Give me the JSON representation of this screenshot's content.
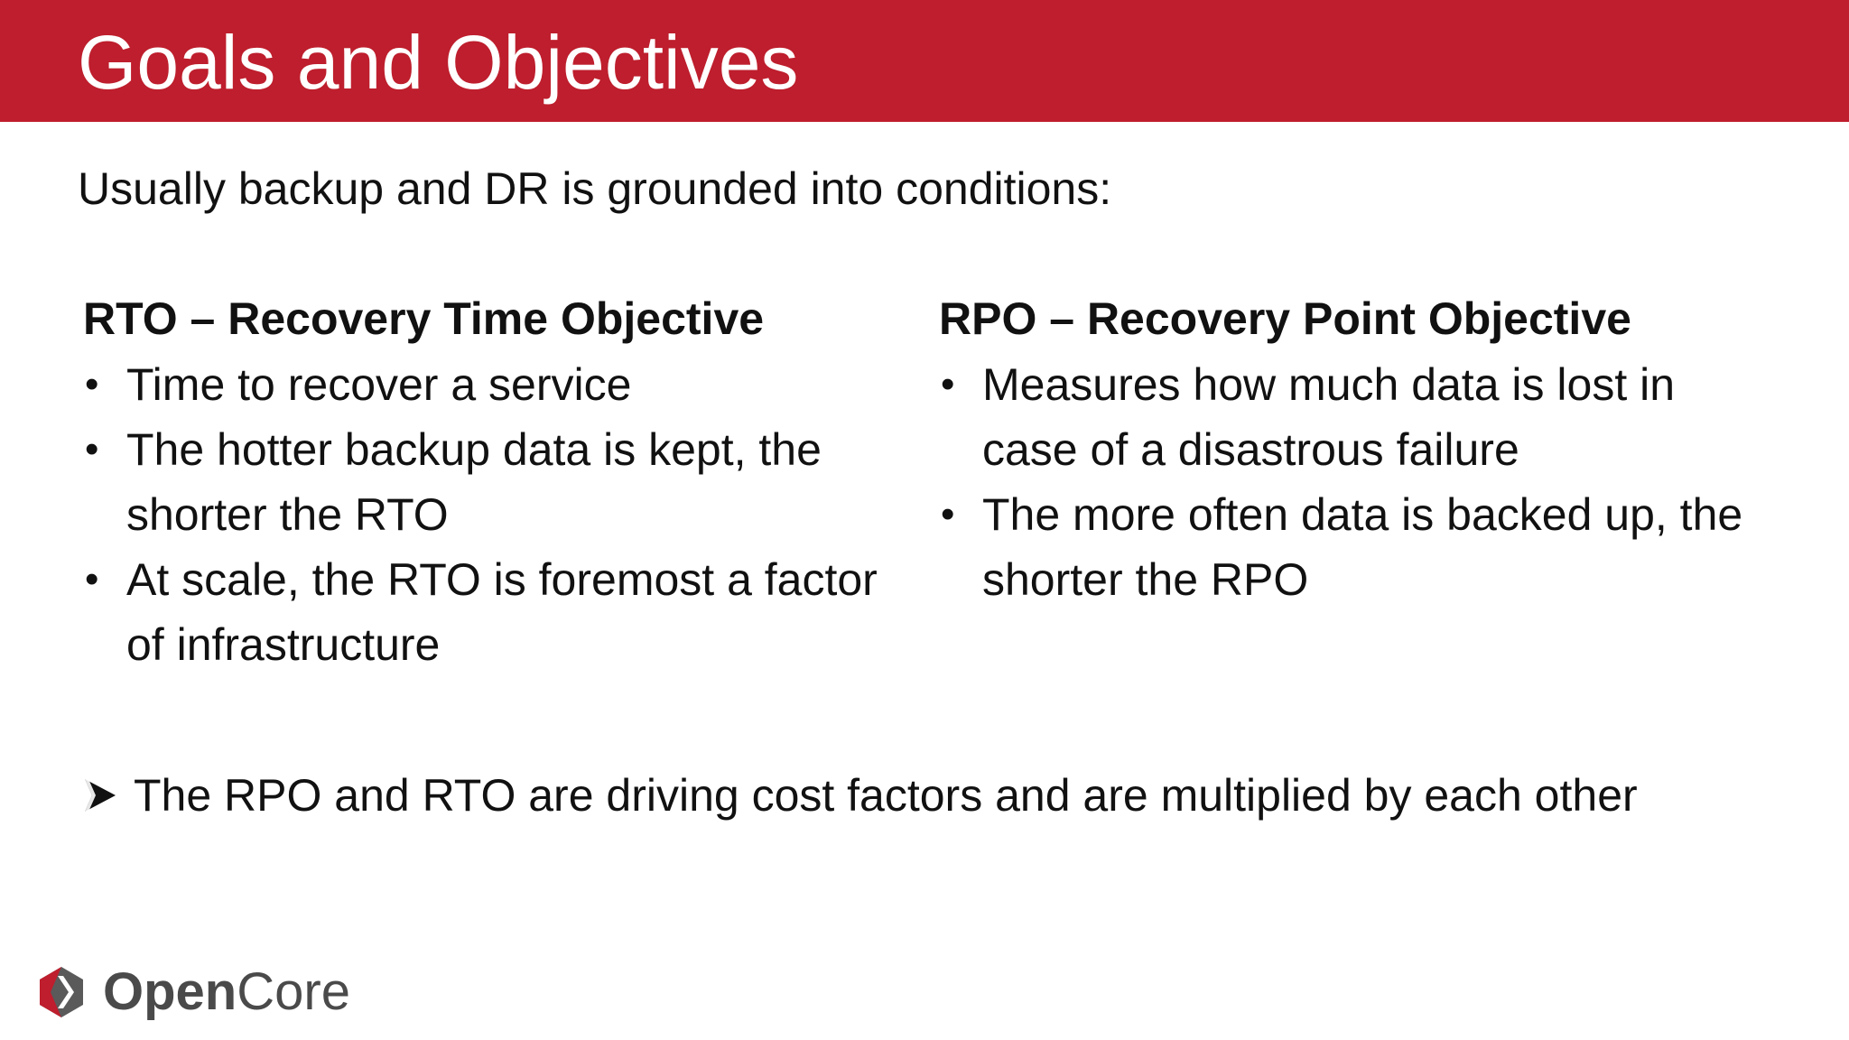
{
  "header": {
    "title": "Goals and Objectives",
    "background_color": "#be1e2d"
  },
  "intro": "Usually backup and DR is grounded into conditions:",
  "columns": [
    {
      "heading": "RTO – Recovery Time Objective",
      "bullets": [
        "Time to recover a service",
        "The hotter backup data is kept, the shorter the RTO",
        "At scale, the RTO is foremost a factor of infrastructure"
      ]
    },
    {
      "heading": "RPO – Recovery Point Objective",
      "bullets": [
        "Measures how much data is lost in case of a disastrous failure",
        "The more often data is backed up, the shorter the RPO"
      ]
    }
  ],
  "bullet_glyph": "•",
  "takeaway": {
    "icon": "arrow-right-icon",
    "text": "The RPO and RTO are driving cost factors and are multiplied by each other"
  },
  "logo": {
    "icon": "opencore-logo-icon",
    "text_bold": "Open",
    "text_light": "Core",
    "mark_color": "#be1e2d",
    "mark_shadow_color": "#5a5a5a"
  }
}
